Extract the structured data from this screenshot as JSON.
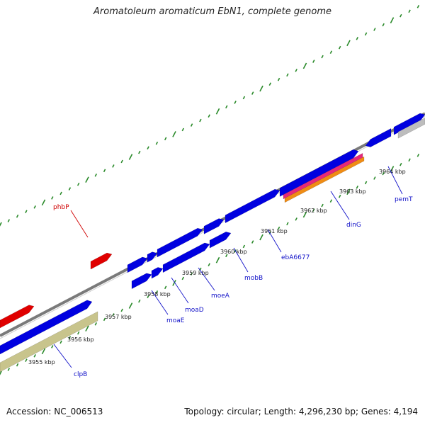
{
  "title": "Aromatoleum aromaticum EbN1, complete genome",
  "footer": {
    "accession": "Accession: NC_006513",
    "summary": "Topology: circular; Length: 4,296,230 bp; Genes: 4,194"
  },
  "colors": {
    "backbone": "#7a7a7a",
    "forward_gene": "#0000e0",
    "reverse_gene": "#0000e0",
    "other_gene": "#e00000",
    "khaki": "#c8c48c",
    "pink": "#e6287a",
    "orange": "#f08c14",
    "grey_feature": "#bdbdbd",
    "tick": "#2a8a2a",
    "label_blue": "#1010c8",
    "label_red": "#d00000"
  },
  "scale_labels": [
    "3955 kbp",
    "3956 kbp",
    "3957 kbp",
    "3958 kbp",
    "3959 kbp",
    "3960 kbp",
    "3961 kbp",
    "3962 kbp",
    "3963 kbp",
    "3964 kbp"
  ],
  "gene_labels": [
    {
      "name": "phbP",
      "color": "red"
    },
    {
      "name": "clpB",
      "color": "blue"
    },
    {
      "name": "moaE",
      "color": "blue"
    },
    {
      "name": "moaD",
      "color": "blue"
    },
    {
      "name": "moeA",
      "color": "blue"
    },
    {
      "name": "mobB",
      "color": "blue"
    },
    {
      "name": "ebA6677",
      "color": "blue"
    },
    {
      "name": "dinG",
      "color": "blue"
    },
    {
      "name": "pemT",
      "color": "blue"
    }
  ]
}
